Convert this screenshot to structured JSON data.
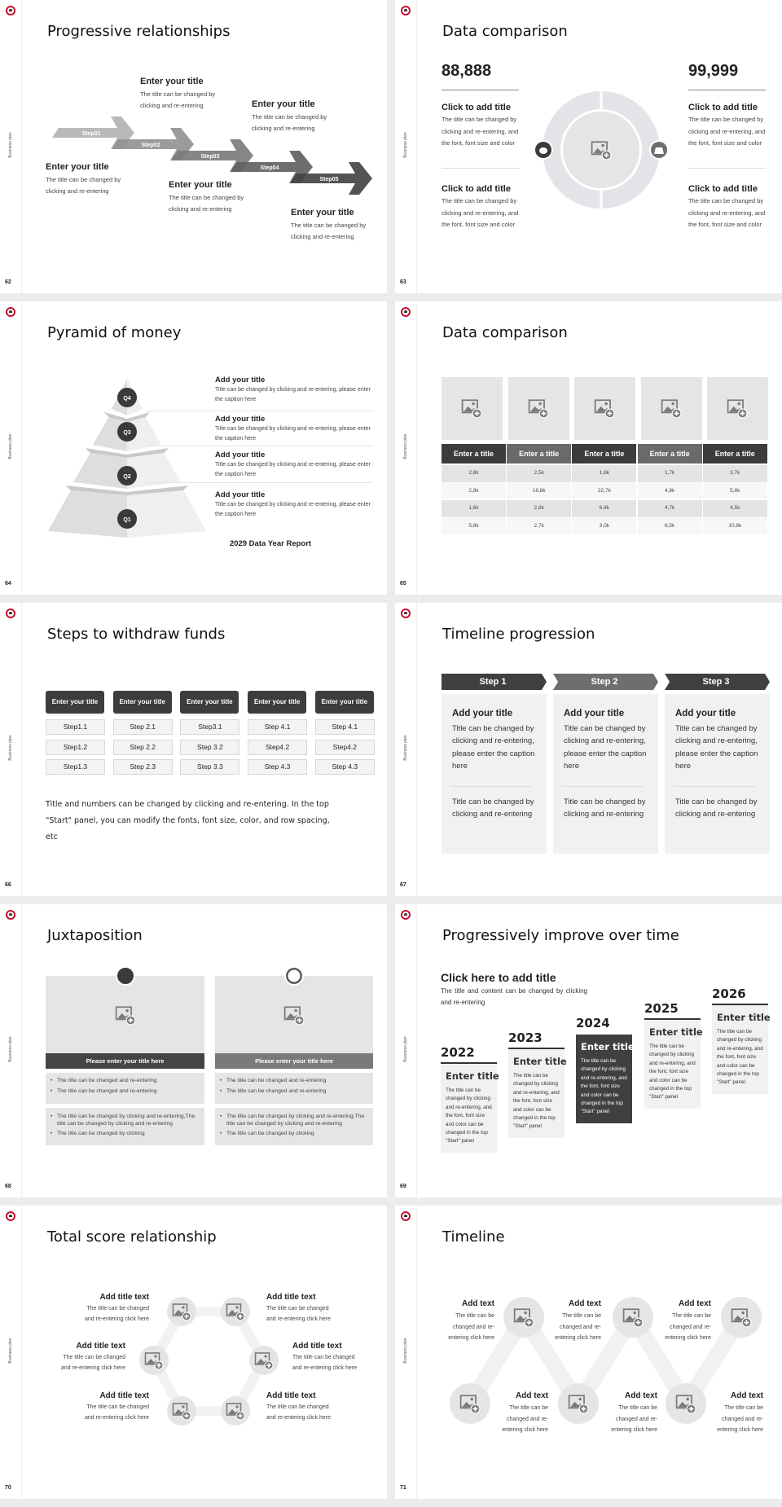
{
  "sidebar_label": "Business plan",
  "colors": {
    "dark": "#404040",
    "mid": "#6e6e6e",
    "light": "#f1f1f1",
    "tile": "#e6e4e4",
    "logo_ring": "#c8102e"
  },
  "icons": {
    "logo": "tree-logo-icon",
    "image": "image-placeholder-icon"
  },
  "slides": [
    {
      "number": "62",
      "title": "Progressive relationships",
      "steps": [
        "Step01",
        "Step02",
        "Step03",
        "Step04",
        "Step05"
      ],
      "blocks": [
        {
          "title": "Enter your title",
          "text": "The title can be changed by clicking and re-entering"
        },
        {
          "title": "Enter your title",
          "text": "The title can be changed by clicking and re-entering"
        },
        {
          "title": "Enter your title",
          "text": "The title can be changed by clicking and re-entering"
        },
        {
          "title": "Enter your title",
          "text": "The title can be changed by clicking and re-entering"
        },
        {
          "title": "Enter your title",
          "text": "The title can be changed by clicking and re-entering"
        }
      ]
    },
    {
      "number": "63",
      "title": "Data comparison",
      "left": {
        "value": "88,888",
        "items": [
          {
            "title": "Click to add title",
            "text": "The title can be changed by clicking and re-entering, and the font, font size and color"
          },
          {
            "title": "Click to add title",
            "text": "The title can be changed by clicking and re-entering, and the font, font size and color"
          }
        ]
      },
      "right": {
        "value": "99,999",
        "items": [
          {
            "title": "Click to add title",
            "text": "The title can be changed by clicking and re-entering, and the font, font size and color"
          },
          {
            "title": "Click to add title",
            "text": "The title can be changed by clicking and re-entering, and the font, font size and color"
          }
        ]
      },
      "icons": [
        "piggy-bank-icon",
        "money-bag-icon"
      ]
    },
    {
      "number": "64",
      "title": "Pyramid of money",
      "levels": [
        "Q4",
        "Q3",
        "Q2",
        "Q1"
      ],
      "items": [
        {
          "title": "Add your title",
          "text": "Title can be changed by clicking and re-entering, please enter the caption here"
        },
        {
          "title": "Add your title",
          "text": "Title can be changed by clicking and re-entering, please enter the caption here"
        },
        {
          "title": "Add your title",
          "text": "Title can be changed by clicking and re-entering, please enter the caption here"
        },
        {
          "title": "Add your title",
          "text": "Title can be changed by clicking and re-entering, please enter the caption here"
        }
      ],
      "footer": "2029 Data Year Report"
    },
    {
      "number": "65",
      "title": "Data comparison",
      "headers": [
        "Enter a title",
        "Enter a title",
        "Enter a title",
        "Enter a title",
        "Enter a title"
      ],
      "rows": [
        [
          "2,8k",
          "2,5k",
          "1,6k",
          "1,7k",
          "3,7k"
        ],
        [
          "2,8k",
          "16,8k",
          "22,7k",
          "4,8k",
          "5,8k"
        ],
        [
          "1,6k",
          "2,6k",
          "6,8k",
          "4,7k",
          "4,5k"
        ],
        [
          "5,8k",
          "2,7k",
          "3,0k",
          "6,5k",
          "10,8k"
        ]
      ]
    },
    {
      "number": "66",
      "title": "Steps to withdraw funds",
      "columns": [
        {
          "header": "Enter your title",
          "steps": [
            "Step1.1",
            "Step1.2",
            "Step1.3"
          ]
        },
        {
          "header": "Enter your title",
          "steps": [
            "Step 2.1",
            "Step 2.2",
            "Step 2.3"
          ]
        },
        {
          "header": "Enter your title",
          "steps": [
            "Step3.1",
            "Step 3.2",
            "Step 3.3"
          ]
        },
        {
          "header": "Enter your title",
          "steps": [
            "Step 4.1",
            "Step4.2",
            "Step 4.3"
          ]
        },
        {
          "header": "Enter your title",
          "steps": [
            "Step 4.1",
            "Step4.2",
            "Step 4.3"
          ]
        }
      ],
      "note": "Title and numbers can be changed by clicking and re-entering. In the top \"Start\" panel, you can modify the fonts, font size, color, and row spacing, etc"
    },
    {
      "number": "67",
      "title": "Timeline progression",
      "steps": [
        {
          "label": "Step 1",
          "title": "Add your title",
          "text": "Title can be changed by clicking and re-entering, please enter the caption here",
          "text2": "Title can be changed by clicking and re-entering"
        },
        {
          "label": "Step 2",
          "title": "Add your title",
          "text": "Title can be changed by clicking and re-entering, please enter the caption here",
          "text2": "Title can be changed by clicking and re-entering"
        },
        {
          "label": "Step 3",
          "title": "Add your title",
          "text": "Title can be changed by clicking and re-entering, please enter the caption here",
          "text2": "Title can be changed by clicking and re-entering"
        }
      ]
    },
    {
      "number": "68",
      "title": "Juxtaposition",
      "panels": [
        {
          "icon": "bar-chart-icon",
          "header": "Please enter your title here",
          "bullets1": [
            "The title can be changed and re-entering",
            "The title can be changed and re-entering"
          ],
          "bullets2": [
            "The title can be changed by clicking and re-entering,The title can be changed by clicking and re-entering",
            "The title can be changed by clicking"
          ]
        },
        {
          "icon": "pie-chart-icon",
          "header": "Please enter your title here",
          "bullets1": [
            "The title can be changed and re-entering",
            "The title can be changed and re-entering"
          ],
          "bullets2": [
            "The title can be changed by clicking and re-entering,The title can be changed by clicking and re-entering",
            "The title can be changed by clicking"
          ]
        }
      ]
    },
    {
      "number": "69",
      "title": "Progressively improve over time",
      "heading": "Click here to add title",
      "subheading": "The title and content can be changed by clicking and re-entering",
      "years": [
        {
          "year": "2022",
          "title": "Enter title",
          "text": "The title can be changed by clicking and re-entering, and the font, font size and color can be changed in the top \"Start\" panel",
          "highlight": false
        },
        {
          "year": "2023",
          "title": "Enter title",
          "text": "The title can be changed by clicking and re-entering, and the font, font size and color can be changed in the top \"Start\" panel",
          "highlight": false
        },
        {
          "year": "2024",
          "title": "Enter title",
          "text": "The title can be changed by clicking and re-entering, and the font, font size and color can be changed in the top \"Start\" panel",
          "highlight": true
        },
        {
          "year": "2025",
          "title": "Enter title",
          "text": "The title can be changed by clicking and re-entering, and the font, font size and color can be changed in the top \"Start\" panel",
          "highlight": false
        },
        {
          "year": "2026",
          "title": "Enter title",
          "text": "The title can be changed by clicking and re-entering, and the font, font size and color can be changed in the top \"Start\" panel",
          "highlight": false
        }
      ]
    },
    {
      "number": "70",
      "title": "Total score relationship",
      "items": [
        {
          "title": "Add title text",
          "text": "The title can be changed and re-entering click here"
        },
        {
          "title": "Add title text",
          "text": "The title can be changed and re-entering click here"
        },
        {
          "title": "Add title text",
          "text": "The title can be changed and re-entering click here"
        },
        {
          "title": "Add title text",
          "text": "The title can be changed and re-entering click here"
        },
        {
          "title": "Add title text",
          "text": "The title can be changed and re-entering click here"
        },
        {
          "title": "Add title text",
          "text": "The title can be changed and re-entering click here"
        }
      ]
    },
    {
      "number": "71",
      "title": "Timeline",
      "items": [
        {
          "title": "Add text",
          "text": "The title can be changed and re-entering click here"
        },
        {
          "title": "Add text",
          "text": "The title can be changed and re-entering click here"
        },
        {
          "title": "Add text",
          "text": "The title can be changed and re-entering click here"
        },
        {
          "title": "Add text",
          "text": "The title can be changed and re-entering click here"
        },
        {
          "title": "Add text",
          "text": "The title can be changed and re-entering click here"
        },
        {
          "title": "Add text",
          "text": "The title can be changed and re-entering click here"
        }
      ]
    }
  ]
}
